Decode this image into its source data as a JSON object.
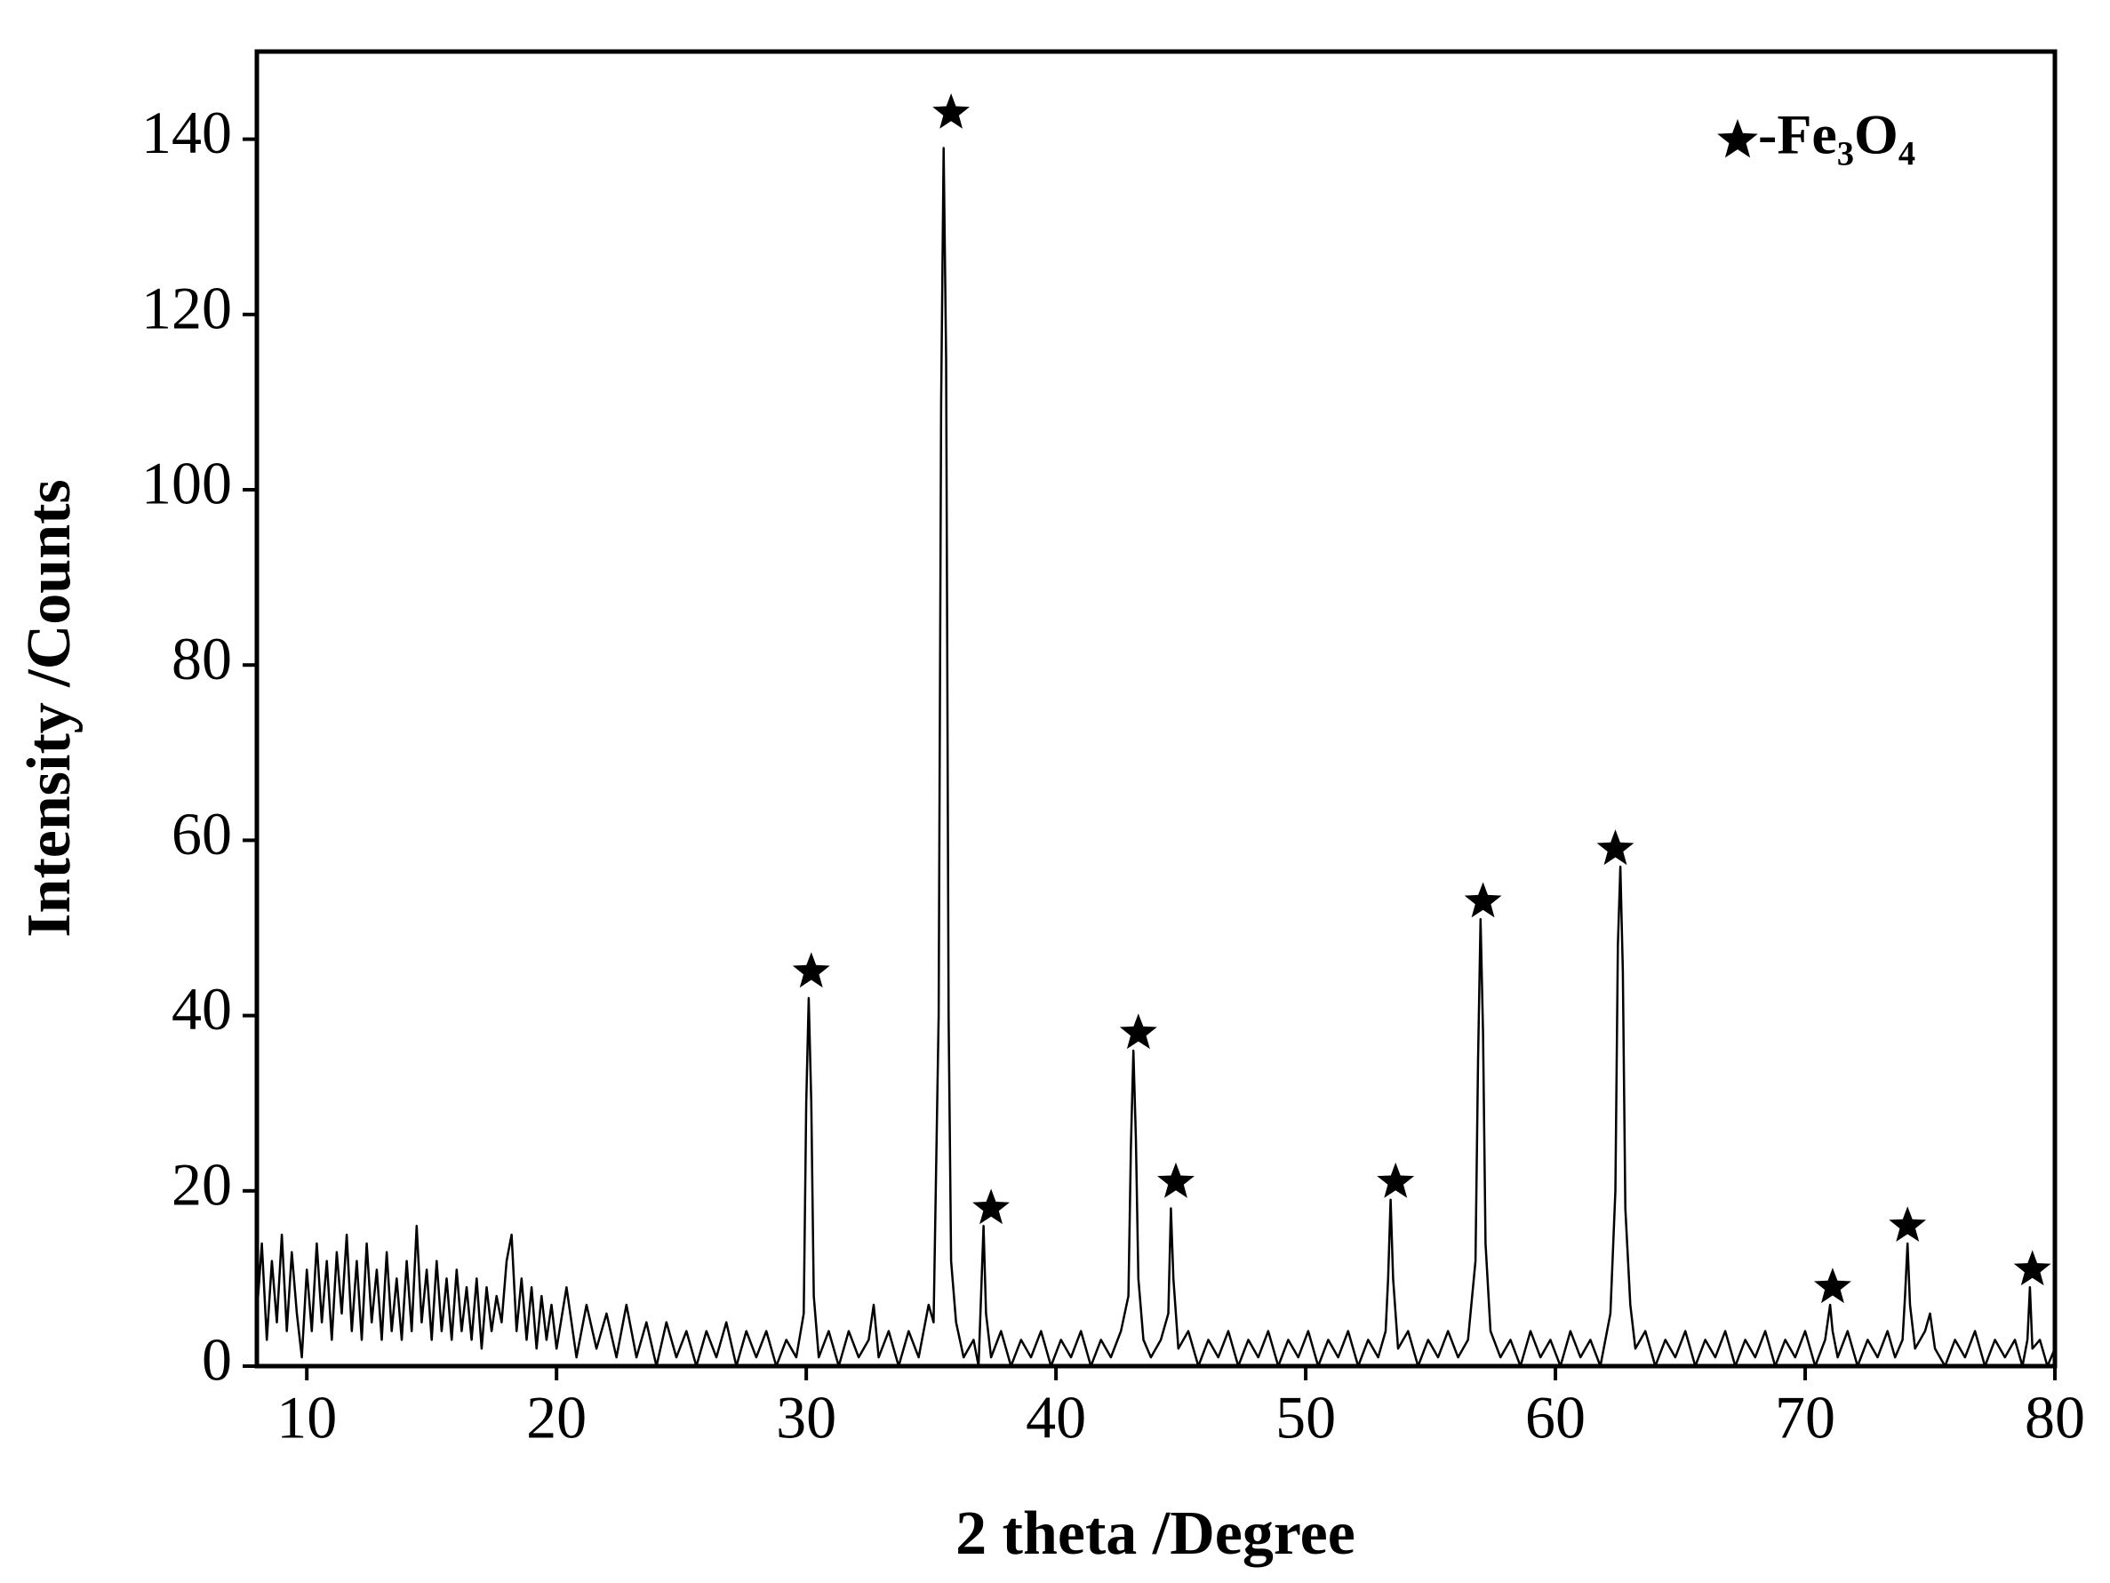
{
  "chart_data": {
    "type": "line",
    "xlabel": "2 theta /Degree",
    "ylabel": "Intensity /Counts",
    "xlim": [
      8,
      80
    ],
    "xticks": [
      10,
      20,
      30,
      40,
      50,
      60,
      70,
      80
    ],
    "ylim": [
      0,
      150
    ],
    "yticks": [
      0,
      20,
      40,
      60,
      80,
      100,
      120,
      140
    ],
    "legend": "upper right",
    "series": [
      {
        "name": "-Fe₃O₄",
        "color": "#000000",
        "x": [
          8.0,
          8.2,
          8.4,
          8.6,
          8.8,
          9.0,
          9.2,
          9.4,
          9.6,
          9.8,
          10.0,
          10.2,
          10.4,
          10.6,
          10.8,
          11.0,
          11.2,
          11.4,
          11.6,
          11.8,
          12.0,
          12.2,
          12.4,
          12.6,
          12.8,
          13.0,
          13.2,
          13.4,
          13.6,
          13.8,
          14.0,
          14.2,
          14.4,
          14.6,
          14.8,
          15.0,
          15.2,
          15.4,
          15.6,
          15.8,
          16.0,
          16.2,
          16.4,
          16.6,
          16.8,
          17.0,
          17.2,
          17.4,
          17.6,
          17.8,
          18.0,
          18.2,
          18.4,
          18.6,
          18.8,
          19.0,
          19.2,
          19.4,
          19.6,
          19.8,
          20.0,
          20.4,
          20.8,
          21.2,
          21.6,
          22.0,
          22.4,
          22.8,
          23.2,
          23.6,
          24.0,
          24.4,
          24.8,
          25.2,
          25.6,
          26.0,
          26.4,
          26.8,
          27.2,
          27.6,
          28.0,
          28.4,
          28.8,
          29.2,
          29.6,
          29.9,
          30.0,
          30.1,
          30.2,
          30.3,
          30.5,
          30.9,
          31.3,
          31.7,
          32.1,
          32.5,
          32.7,
          32.9,
          33.3,
          33.7,
          34.1,
          34.5,
          34.9,
          35.1,
          35.3,
          35.4,
          35.5,
          35.6,
          35.7,
          35.8,
          36.0,
          36.3,
          36.7,
          36.9,
          37.0,
          37.1,
          37.2,
          37.4,
          37.8,
          38.2,
          38.6,
          39.0,
          39.4,
          39.8,
          40.2,
          40.6,
          41.0,
          41.4,
          41.8,
          42.2,
          42.6,
          42.9,
          43.0,
          43.1,
          43.2,
          43.3,
          43.5,
          43.8,
          44.2,
          44.5,
          44.6,
          44.7,
          44.9,
          45.3,
          45.7,
          46.1,
          46.5,
          46.9,
          47.3,
          47.7,
          48.1,
          48.5,
          48.9,
          49.3,
          49.7,
          50.1,
          50.5,
          50.9,
          51.3,
          51.7,
          52.1,
          52.5,
          52.9,
          53.2,
          53.3,
          53.4,
          53.5,
          53.7,
          54.1,
          54.5,
          54.9,
          55.3,
          55.7,
          56.1,
          56.5,
          56.8,
          56.9,
          57.0,
          57.1,
          57.2,
          57.4,
          57.8,
          58.2,
          58.6,
          59.0,
          59.4,
          59.8,
          60.2,
          60.6,
          61.0,
          61.4,
          61.8,
          62.2,
          62.4,
          62.5,
          62.6,
          62.7,
          62.8,
          63.0,
          63.2,
          63.6,
          64.0,
          64.4,
          64.8,
          65.2,
          65.6,
          66.0,
          66.4,
          66.8,
          67.2,
          67.6,
          68.0,
          68.4,
          68.8,
          69.2,
          69.6,
          70.0,
          70.4,
          70.8,
          70.9,
          71.0,
          71.1,
          71.3,
          71.7,
          72.1,
          72.5,
          72.9,
          73.3,
          73.6,
          73.9,
          74.0,
          74.1,
          74.2,
          74.4,
          74.8,
          75.0,
          75.2,
          75.6,
          76.0,
          76.4,
          76.8,
          77.2,
          77.6,
          78.0,
          78.4,
          78.7,
          78.9,
          79.0,
          79.1,
          79.4,
          79.7,
          80.0
        ],
        "values": [
          6,
          14,
          3,
          12,
          5,
          15,
          4,
          13,
          6,
          1,
          11,
          4,
          14,
          5,
          12,
          3,
          13,
          6,
          15,
          4,
          12,
          3,
          14,
          5,
          11,
          3,
          13,
          4,
          10,
          3,
          12,
          4,
          16,
          5,
          11,
          3,
          12,
          4,
          10,
          3,
          11,
          4,
          9,
          3,
          10,
          2,
          9,
          4,
          8,
          5,
          12,
          15,
          4,
          10,
          3,
          9,
          2,
          8,
          3,
          7,
          2,
          9,
          1,
          7,
          2,
          6,
          1,
          7,
          1,
          5,
          0,
          5,
          1,
          4,
          0,
          4,
          1,
          5,
          0,
          4,
          1,
          4,
          0,
          3,
          1,
          6,
          30,
          42,
          30,
          8,
          1,
          4,
          0,
          4,
          1,
          3,
          7,
          1,
          4,
          0,
          4,
          1,
          7,
          5,
          40,
          110,
          139,
          115,
          40,
          12,
          5,
          1,
          3,
          0,
          8,
          16,
          6,
          1,
          4,
          0,
          3,
          1,
          4,
          0,
          3,
          1,
          4,
          0,
          3,
          1,
          4,
          8,
          25,
          36,
          26,
          10,
          3,
          1,
          3,
          6,
          18,
          10,
          2,
          4,
          0,
          3,
          1,
          4,
          0,
          3,
          1,
          4,
          0,
          3,
          1,
          4,
          0,
          3,
          1,
          4,
          0,
          3,
          1,
          4,
          10,
          19,
          10,
          2,
          4,
          0,
          3,
          1,
          4,
          1,
          3,
          12,
          35,
          51,
          38,
          14,
          4,
          1,
          3,
          0,
          4,
          1,
          3,
          0,
          4,
          1,
          3,
          0,
          6,
          20,
          48,
          57,
          45,
          18,
          7,
          2,
          4,
          0,
          3,
          1,
          4,
          0,
          3,
          1,
          4,
          0,
          3,
          1,
          4,
          0,
          3,
          1,
          4,
          0,
          3,
          5,
          7,
          4,
          1,
          4,
          0,
          3,
          1,
          4,
          1,
          3,
          8,
          14,
          7,
          2,
          4,
          6,
          2,
          0,
          3,
          1,
          4,
          0,
          3,
          1,
          3,
          0,
          3,
          9,
          2,
          3,
          0,
          2
        ]
      }
    ],
    "peak_markers": {
      "x": [
        30.2,
        35.8,
        37.4,
        43.3,
        44.8,
        53.6,
        57.1,
        62.4,
        71.1,
        74.1,
        79.1
      ],
      "y": [
        45,
        143,
        18,
        38,
        21,
        21,
        53,
        59,
        9,
        16,
        11
      ]
    }
  }
}
